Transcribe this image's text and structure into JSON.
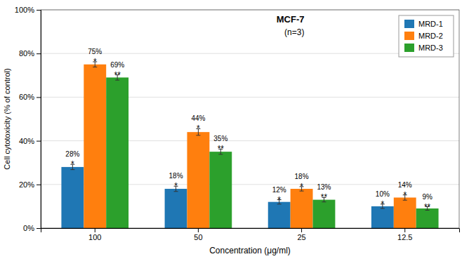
{
  "chart_data": {
    "type": "bar",
    "categories": [
      "100",
      "50",
      "25",
      "12.5"
    ],
    "xlabel": "Concentration (μg/ml)",
    "ylabel": "Cell cytotoxicity (% of control)",
    "series": [
      {
        "name": "MRD-1",
        "values": [
          28,
          18,
          12,
          10
        ],
        "errors": [
          1.2,
          1.2,
          1.0,
          1.0
        ],
        "value_labels": [
          "28%",
          "18%",
          "12%",
          "10%"
        ],
        "significance": [
          "*",
          "*",
          "*",
          "*"
        ]
      },
      {
        "name": "MRD-2",
        "values": [
          75,
          44,
          18,
          14
        ],
        "errors": [
          1.2,
          1.5,
          1.0,
          1.2
        ],
        "value_labels": [
          "75%",
          "44%",
          "18%",
          "14%"
        ],
        "significance": [
          "*",
          "*",
          "*",
          "*"
        ]
      },
      {
        "name": "MRD-3",
        "values": [
          69,
          35,
          13,
          9
        ],
        "errors": [
          1.2,
          1.2,
          1.0,
          0.8
        ],
        "value_labels": [
          "69%",
          "35%",
          "13%",
          "9%"
        ],
        "significance": [
          "**",
          "**",
          "**",
          "**"
        ]
      }
    ],
    "ylim": [
      0,
      100
    ],
    "yticks": [
      {
        "value": 0,
        "label": "0%"
      },
      {
        "value": 20,
        "label": "20%"
      },
      {
        "value": 40,
        "label": "40%"
      },
      {
        "value": 60,
        "label": "60%"
      },
      {
        "value": 80,
        "label": "80%"
      },
      {
        "value": 100,
        "label": "100%"
      }
    ],
    "grid": true,
    "legend": "upper right",
    "data_labels": true,
    "annotations": [
      {
        "text": "MCF-7"
      },
      {
        "text": "(n=3)"
      }
    ]
  }
}
